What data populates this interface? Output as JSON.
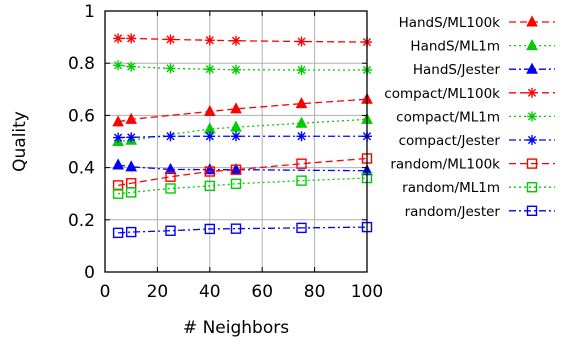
{
  "chart_data": {
    "type": "line",
    "xlabel": "# Neighbors",
    "ylabel": "Quality",
    "xlim": [
      0,
      100
    ],
    "ylim": [
      0,
      1
    ],
    "x_ticks": [
      0,
      20,
      40,
      60,
      80,
      100
    ],
    "y_ticks": [
      0,
      0.2,
      0.4,
      0.6,
      0.8,
      1
    ],
    "x_tick_labels": [
      "0",
      "20",
      "40",
      "60",
      "80",
      "100"
    ],
    "y_tick_labels": [
      "0",
      "0.2",
      "0.4",
      "0.6",
      "0.8",
      "1"
    ],
    "grid": true,
    "legend_position": "right",
    "x": [
      5,
      10,
      25,
      40,
      50,
      75,
      100
    ],
    "series": [
      {
        "name": "HandS/ML100k",
        "color": "#ff0000",
        "marker": "triangle",
        "dash": "dashed",
        "values": [
          0.575,
          0.585,
          null,
          0.615,
          0.625,
          0.645,
          0.662
        ]
      },
      {
        "name": "HandS/ML1m",
        "color": "#00cc00",
        "marker": "triangle",
        "dash": "dotted",
        "values": [
          0.5,
          0.505,
          null,
          0.548,
          0.555,
          0.57,
          0.585
        ]
      },
      {
        "name": "HandS/Jester",
        "color": "#0000ff",
        "marker": "triangle",
        "dash": "dashdot",
        "values": [
          0.41,
          0.403,
          0.393,
          0.392,
          0.392,
          null,
          0.388
        ]
      },
      {
        "name": "compact/ML100k",
        "color": "#ff0000",
        "marker": "asterisk",
        "dash": "dashed",
        "values": [
          0.895,
          0.895,
          0.891,
          0.888,
          0.886,
          0.883,
          0.881
        ]
      },
      {
        "name": "compact/ML1m",
        "color": "#00cc00",
        "marker": "asterisk",
        "dash": "dotted",
        "values": [
          0.792,
          0.787,
          0.78,
          0.777,
          0.775,
          0.774,
          0.774
        ]
      },
      {
        "name": "compact/Jester",
        "color": "#0000ff",
        "marker": "asterisk",
        "dash": "dashdot",
        "values": [
          0.515,
          0.516,
          0.52,
          0.52,
          0.52,
          0.52,
          0.52
        ]
      },
      {
        "name": "random/ML100k",
        "color": "#ff0000",
        "marker": "square",
        "dash": "dashed",
        "values": [
          0.332,
          0.34,
          0.365,
          0.385,
          0.392,
          0.415,
          0.435
        ]
      },
      {
        "name": "random/ML1m",
        "color": "#00cc00",
        "marker": "square",
        "dash": "dotted",
        "values": [
          0.3,
          0.305,
          0.32,
          0.33,
          0.338,
          0.35,
          0.36
        ]
      },
      {
        "name": "random/Jester",
        "color": "#0000ff",
        "marker": "square",
        "dash": "dashdot",
        "values": [
          0.15,
          0.153,
          0.158,
          0.165,
          0.166,
          0.169,
          0.172
        ]
      }
    ]
  }
}
